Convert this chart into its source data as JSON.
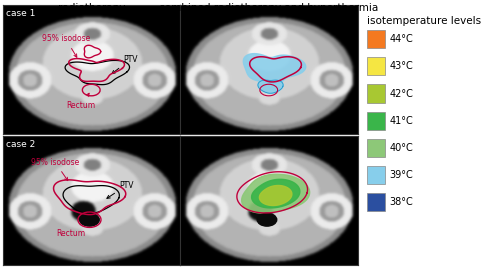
{
  "title_left": "radiotherapy",
  "title_right": "combined radiotherapy and hyperthermia",
  "legend_title": "isotemperature levels",
  "legend_items": [
    {
      "label": "44°C",
      "color": "#f47920"
    },
    {
      "label": "43°C",
      "color": "#f5e642"
    },
    {
      "label": "42°C",
      "color": "#a8c832"
    },
    {
      "label": "41°C",
      "color": "#3ab54a"
    },
    {
      "label": "40°C",
      "color": "#8dc878"
    },
    {
      "label": "39°C",
      "color": "#87ceeb"
    },
    {
      "label": "38°C",
      "color": "#2b4fa0"
    }
  ],
  "case1_label": "case 1",
  "case2_label": "case 2",
  "bg_color": "#ffffff",
  "title_fontsize": 7.5,
  "legend_title_fontsize": 7.5,
  "legend_item_fontsize": 7.0,
  "case_label_fontsize": 6.5,
  "annotation_fontsize": 5.5
}
